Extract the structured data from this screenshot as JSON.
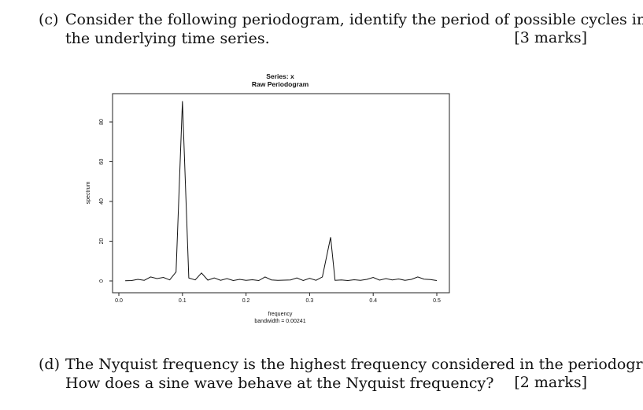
{
  "question_c": {
    "label": "(c)",
    "line1": "Consider the following periodogram, identify the period of possible cycles in",
    "line2": "the underlying time series.",
    "marks": "[3 marks]"
  },
  "question_d": {
    "label": "(d)",
    "line1": "The Nyquist frequency is the highest frequency considered in the periodogram.",
    "line2": "How does a sine wave behave at the Nyquist frequency?",
    "marks": "[2 marks]"
  },
  "chart_data": {
    "type": "line",
    "title": "Series: x",
    "subtitle": "Raw Periodogram",
    "xlabel": "frequency",
    "xlabel_note": "bandwidth = 0.00241",
    "ylabel": "spectrum",
    "xlim": [
      0.0,
      0.5
    ],
    "ylim": [
      0,
      90
    ],
    "x_ticks": [
      "0.0",
      "0.1",
      "0.2",
      "0.3",
      "0.4",
      "0.5"
    ],
    "x_tick_values": [
      0.0,
      0.1,
      0.2,
      0.3,
      0.4,
      0.5
    ],
    "y_ticks": [
      "0",
      "20",
      "40",
      "60",
      "80"
    ],
    "y_tick_values": [
      0,
      20,
      40,
      60,
      80
    ],
    "grid": false,
    "series": [
      {
        "x": [
          0.01,
          0.02,
          0.03,
          0.04,
          0.05,
          0.06,
          0.07,
          0.08,
          0.09,
          0.1,
          0.11,
          0.12,
          0.13,
          0.14,
          0.15,
          0.16,
          0.17,
          0.18,
          0.19,
          0.2,
          0.21,
          0.22,
          0.23,
          0.24,
          0.25,
          0.26,
          0.27,
          0.28,
          0.29,
          0.3,
          0.31,
          0.32,
          0.333,
          0.34,
          0.35,
          0.36,
          0.37,
          0.38,
          0.39,
          0.4,
          0.41,
          0.42,
          0.43,
          0.44,
          0.45,
          0.46,
          0.47,
          0.48,
          0.49,
          0.5
        ],
        "y": [
          0.1,
          0.2,
          0.8,
          0.3,
          2.0,
          1.2,
          1.8,
          0.5,
          4.5,
          90.5,
          1.5,
          0.5,
          4.0,
          0.4,
          1.5,
          0.3,
          1.2,
          0.2,
          0.8,
          0.3,
          0.6,
          0.2,
          2.0,
          0.5,
          0.3,
          0.4,
          0.5,
          1.5,
          0.2,
          1.3,
          0.3,
          2.0,
          22.0,
          0.3,
          0.5,
          0.2,
          0.6,
          0.3,
          0.8,
          1.8,
          0.4,
          1.2,
          0.5,
          1.0,
          0.3,
          0.8,
          2.0,
          0.9,
          0.7,
          0.2
        ]
      }
    ]
  }
}
